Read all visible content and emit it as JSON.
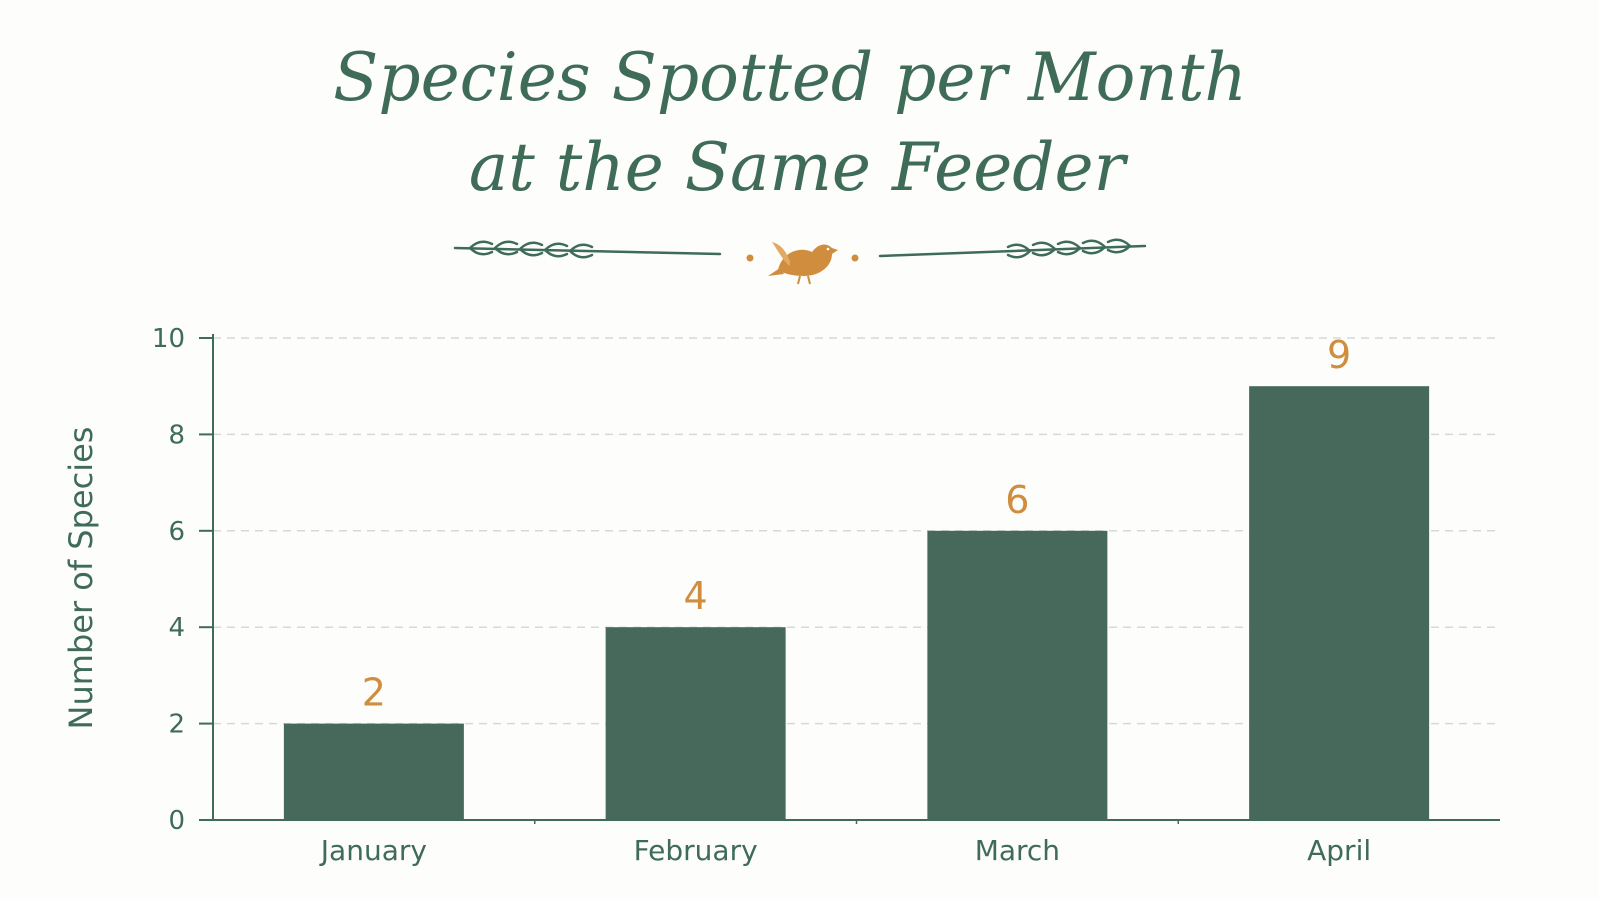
{
  "chart_data": {
    "type": "bar",
    "title_lines": [
      "Species Spotted per Month",
      "at the Same Feeder"
    ],
    "xlabel": "",
    "ylabel": "Number of Species",
    "categories": [
      "January",
      "February",
      "March",
      "April"
    ],
    "values": [
      2,
      4,
      6,
      9
    ],
    "ylim": [
      0,
      10
    ],
    "yticks": [
      "0",
      "2",
      "4",
      "6",
      "8",
      "10"
    ],
    "grid": "horizontal-dashed",
    "legend": "none",
    "data_labels": true
  },
  "colors": {
    "bar": "#46695b",
    "text": "#3f6b59",
    "value_label": "#d08d3e",
    "grid": "#d6d9d7",
    "ornament": "#3f6b59",
    "bird": "#d08d3e"
  },
  "icons": {
    "ornament": "bird-icon"
  }
}
